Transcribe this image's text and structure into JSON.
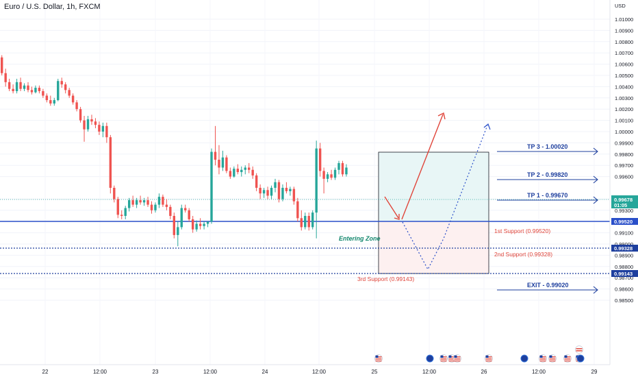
{
  "header": {
    "title": "Euro / U.S. Dollar, 1h, FXCM"
  },
  "axis": {
    "currency": "USD",
    "price_ticks": [
      "1.01000",
      "1.00900",
      "1.00800",
      "1.00700",
      "1.00600",
      "1.00500",
      "1.00400",
      "1.00300",
      "1.00200",
      "1.00100",
      "1.00000",
      "0.99900",
      "0.99800",
      "0.99700",
      "0.99600",
      "0.99400",
      "0.99300",
      "0.99200",
      "0.99100",
      "0.99000",
      "0.98900",
      "0.98800",
      "0.98700",
      "0.98600",
      "0.98500"
    ],
    "time_ticks": [
      "22",
      "12:00",
      "23",
      "12:00",
      "24",
      "12:00",
      "25",
      "12:00",
      "26",
      "12:00",
      "29"
    ]
  },
  "price_tags": {
    "current": "0.99678",
    "countdown": "01:05",
    "support1": "0.99520",
    "support2": "0.99328",
    "support3": "0.99143"
  },
  "annotations": {
    "tp3": "TP 3 - 1.00020",
    "tp2": "TP 2 - 0.99820",
    "tp1": "TP 1 - 0.99670",
    "exit": "EXIT - 0.99020",
    "support1": "1st Support (0.99520)",
    "support2": "2nd Support (0.99328)",
    "support3": "3rd Support (0.99143)",
    "entering_zone": "Entering Zone"
  },
  "colors": {
    "up": "#26a69a",
    "down": "#ef5350",
    "line_blue": "#2a4fc9",
    "annotation_blue": "#1e3f9e",
    "annotation_red": "#e0453a",
    "target_fill": "#e8f6f6",
    "stop_fill": "#fdf0f0"
  },
  "events": {
    "flags": [
      "us-flag-icon",
      "us-flag-icon",
      "us-flag-icon",
      "us-flag-icon",
      "us-flag-icon",
      "us-flag-icon",
      "us-flag-icon",
      "us-flag-icon",
      "us-flag-icon"
    ],
    "dots": [
      "event-dot-icon",
      "event-dot-icon",
      "event-dot-icon"
    ]
  },
  "chart_data": {
    "type": "candlestick",
    "title": "Euro / U.S. Dollar, 1h, FXCM",
    "ylim": [
      0.9845,
      1.0115
    ],
    "levels": {
      "tp3": 1.0002,
      "tp2": 0.9982,
      "tp1": 0.9967,
      "support1": 0.9952,
      "support2": 0.99328,
      "support3": 0.99143,
      "exit": 0.9902
    },
    "ohlc": [
      [
        1.0066,
        1.0068,
        1.005,
        1.0052
      ],
      [
        1.0052,
        1.0056,
        1.004,
        1.0044
      ],
      [
        1.0044,
        1.0047,
        1.0036,
        1.0038
      ],
      [
        1.0038,
        1.0042,
        1.0034,
        1.0036
      ],
      [
        1.0036,
        1.0047,
        1.0034,
        1.0044
      ],
      [
        1.0044,
        1.0048,
        1.0036,
        1.0038
      ],
      [
        1.0038,
        1.0043,
        1.0036,
        1.0041
      ],
      [
        1.0041,
        1.0044,
        1.0035,
        1.0037
      ],
      [
        1.0037,
        1.004,
        1.0033,
        1.0035
      ],
      [
        1.0035,
        1.0041,
        1.0034,
        1.0039
      ],
      [
        1.0039,
        1.0041,
        1.0034,
        1.0036
      ],
      [
        1.0036,
        1.0038,
        1.003,
        1.0032
      ],
      [
        1.0032,
        1.0034,
        1.0026,
        1.0028
      ],
      [
        1.0028,
        1.0032,
        1.0023,
        1.0025
      ],
      [
        1.0025,
        1.003,
        1.0023,
        1.0028
      ],
      [
        1.0028,
        1.0047,
        1.0027,
        1.0045
      ],
      [
        1.0045,
        1.0048,
        1.0039,
        1.0042
      ],
      [
        1.0042,
        1.0044,
        1.0034,
        1.0037
      ],
      [
        1.0037,
        1.0039,
        1.003,
        1.0032
      ],
      [
        1.0032,
        1.0034,
        1.0024,
        1.0026
      ],
      [
        1.0026,
        1.0028,
        1.0018,
        1.002
      ],
      [
        1.002,
        1.0022,
        1.0008,
        1.001
      ],
      [
        1.001,
        1.0014,
        0.9991,
        1.0002
      ],
      [
        1.0002,
        1.0014,
        1.0,
        1.0011
      ],
      [
        1.0011,
        1.0015,
        1.0006,
        1.0009
      ],
      [
        1.0009,
        1.0012,
        1.0003,
        1.0006
      ],
      [
        1.0006,
        1.0009,
        0.9997,
        1.0
      ],
      [
        1.0,
        1.0008,
        0.9995,
        1.0005
      ],
      [
        1.0005,
        1.0008,
        0.999,
        0.9995
      ],
      [
        0.9995,
        0.9997,
        0.9945,
        0.995
      ],
      [
        0.995,
        0.9952,
        0.9937,
        0.994
      ],
      [
        0.994,
        0.9942,
        0.9923,
        0.9926
      ],
      [
        0.9926,
        0.993,
        0.9922,
        0.9925
      ],
      [
        0.9925,
        0.9934,
        0.9922,
        0.9932
      ],
      [
        0.9932,
        0.9941,
        0.9929,
        0.9939
      ],
      [
        0.9939,
        0.9943,
        0.9933,
        0.9935
      ],
      [
        0.9935,
        0.9941,
        0.9932,
        0.9939
      ],
      [
        0.9939,
        0.9943,
        0.9935,
        0.9937
      ],
      [
        0.9937,
        0.9941,
        0.9934,
        0.9939
      ],
      [
        0.9939,
        0.9942,
        0.9933,
        0.9935
      ],
      [
        0.9935,
        0.9938,
        0.9927,
        0.993
      ],
      [
        0.993,
        0.9937,
        0.9928,
        0.9935
      ],
      [
        0.9935,
        0.9945,
        0.9932,
        0.9942
      ],
      [
        0.9942,
        0.9944,
        0.9933,
        0.9935
      ],
      [
        0.9935,
        0.994,
        0.993,
        0.9933
      ],
      [
        0.9933,
        0.9935,
        0.9922,
        0.9925
      ],
      [
        0.9925,
        0.9928,
        0.9905,
        0.9908
      ],
      [
        0.9908,
        0.992,
        0.9898,
        0.9915
      ],
      [
        0.9915,
        0.9935,
        0.9913,
        0.9932
      ],
      [
        0.9932,
        0.9935,
        0.9928,
        0.993
      ],
      [
        0.993,
        0.9932,
        0.992,
        0.9922
      ],
      [
        0.9922,
        0.9925,
        0.991,
        0.9913
      ],
      [
        0.9913,
        0.9921,
        0.9911,
        0.9918
      ],
      [
        0.9918,
        0.9923,
        0.9913,
        0.9916
      ],
      [
        0.9916,
        0.992,
        0.9913,
        0.9918
      ],
      [
        0.9918,
        0.992,
        0.9915,
        0.992
      ],
      [
        0.992,
        0.9985,
        0.9918,
        0.9982
      ],
      [
        0.9982,
        1.0005,
        0.997,
        0.9975
      ],
      [
        0.9975,
        0.9988,
        0.9962,
        0.9968
      ],
      [
        0.9968,
        0.9983,
        0.9965,
        0.9977
      ],
      [
        0.9977,
        0.9979,
        0.9963,
        0.9965
      ],
      [
        0.9965,
        0.9968,
        0.9958,
        0.996
      ],
      [
        0.996,
        0.9969,
        0.9959,
        0.9967
      ],
      [
        0.9967,
        0.9971,
        0.9962,
        0.9964
      ],
      [
        0.9964,
        0.9969,
        0.996,
        0.9966
      ],
      [
        0.9966,
        0.997,
        0.9962,
        0.9968
      ],
      [
        0.9968,
        0.9972,
        0.9963,
        0.9966
      ],
      [
        0.9966,
        0.9969,
        0.9958,
        0.9961
      ],
      [
        0.9961,
        0.9963,
        0.9947,
        0.995
      ],
      [
        0.995,
        0.9953,
        0.994,
        0.9945
      ],
      [
        0.9945,
        0.995,
        0.9941,
        0.9948
      ],
      [
        0.9948,
        0.9951,
        0.994,
        0.9943
      ],
      [
        0.9943,
        0.9952,
        0.994,
        0.995
      ],
      [
        0.995,
        0.9958,
        0.9946,
        0.9955
      ],
      [
        0.9955,
        0.9957,
        0.9937,
        0.994
      ],
      [
        0.994,
        0.9953,
        0.9938,
        0.995
      ],
      [
        0.995,
        0.9955,
        0.9945,
        0.9947
      ],
      [
        0.9947,
        0.9951,
        0.9943,
        0.9949
      ],
      [
        0.9949,
        0.9951,
        0.9935,
        0.9938
      ],
      [
        0.9938,
        0.9941,
        0.992,
        0.9923
      ],
      [
        0.9923,
        0.993,
        0.9912,
        0.9915
      ],
      [
        0.9915,
        0.9928,
        0.9913,
        0.9925
      ],
      [
        0.9925,
        0.9928,
        0.9912,
        0.9915
      ],
      [
        0.9915,
        0.993,
        0.9913,
        0.9928
      ],
      [
        0.9928,
        0.9992,
        0.9905,
        0.9985
      ],
      [
        0.9985,
        0.999,
        0.996,
        0.9965
      ],
      [
        0.9965,
        0.9968,
        0.9945,
        0.9958
      ],
      [
        0.9958,
        0.9964,
        0.9955,
        0.9962
      ],
      [
        0.9962,
        0.9966,
        0.9957,
        0.9959
      ],
      [
        0.9959,
        0.9968,
        0.9957,
        0.9966
      ],
      [
        0.9966,
        0.9974,
        0.9962,
        0.9972
      ],
      [
        0.9972,
        0.9974,
        0.996,
        0.9962
      ],
      [
        0.9962,
        0.9971,
        0.996,
        0.9968
      ]
    ]
  }
}
